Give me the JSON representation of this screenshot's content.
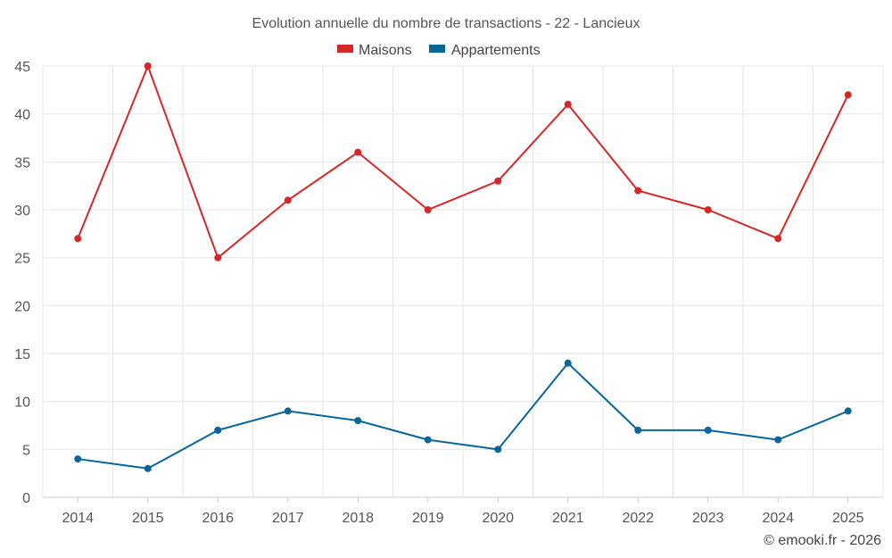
{
  "chart_data": {
    "type": "line",
    "title": "Evolution annuelle du nombre de transactions - 22 - Lancieux",
    "categories": [
      "2014",
      "2015",
      "2016",
      "2017",
      "2018",
      "2019",
      "2020",
      "2021",
      "2022",
      "2023",
      "2024",
      "2025"
    ],
    "series": [
      {
        "name": "Maisons",
        "color": "#d62728",
        "values": [
          27,
          45,
          25,
          31,
          36,
          30,
          33,
          41,
          32,
          30,
          27,
          42
        ]
      },
      {
        "name": "Appartements",
        "color": "#08669a",
        "values": [
          4,
          3,
          7,
          9,
          8,
          6,
          5,
          14,
          7,
          7,
          6,
          9
        ]
      }
    ],
    "ylim": [
      0,
      45
    ],
    "yticks": [
      "0",
      "5",
      "10",
      "15",
      "20",
      "25",
      "30",
      "35",
      "40",
      "45"
    ],
    "xlabel": "",
    "ylabel": "",
    "grid": true,
    "legend": "top-center",
    "credit": "© emooki.fr - 2026"
  }
}
